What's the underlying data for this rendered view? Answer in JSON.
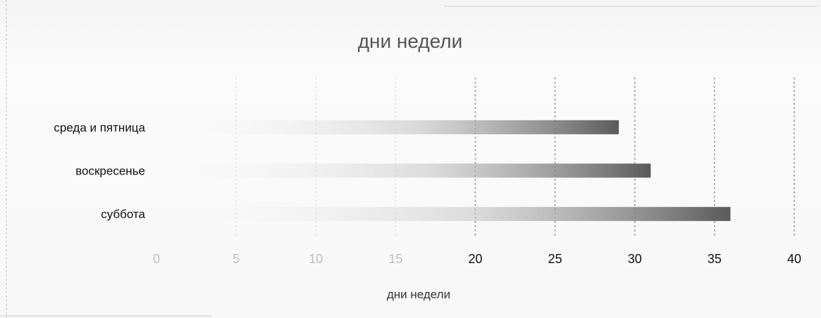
{
  "chart_data": {
    "type": "bar",
    "orientation": "horizontal",
    "title": "дни недели",
    "xlabel": "дни недели",
    "ylabel": "",
    "categories": [
      "среда и пятница",
      "воскресенье",
      "суббота"
    ],
    "values": [
      29,
      31,
      36
    ],
    "xlim": [
      0,
      40
    ],
    "xticks": [
      "0",
      "5",
      "10",
      "15",
      "20",
      "25",
      "30",
      "35",
      "40"
    ],
    "grid": true,
    "legend": "none",
    "bar_color": "#6e6e6e"
  }
}
